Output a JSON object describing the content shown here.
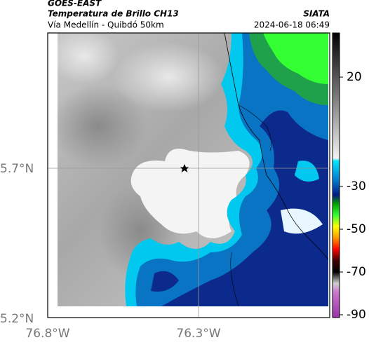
{
  "header": {
    "satellite": "GOES-EAST",
    "product": "Temperatura de Brillo CH13",
    "agency": "SIATA",
    "route": "Vía Medellín - Quibdó 50km",
    "timestamp": "2024-06-18 06:49"
  },
  "axes": {
    "lat_labels": [
      "5.7°N",
      "5.2°N"
    ],
    "lon_labels": [
      "76.8°W",
      "76.3°W"
    ]
  },
  "colorbar": {
    "ticks": [
      20,
      -30,
      -50,
      -70,
      -90
    ]
  }
}
